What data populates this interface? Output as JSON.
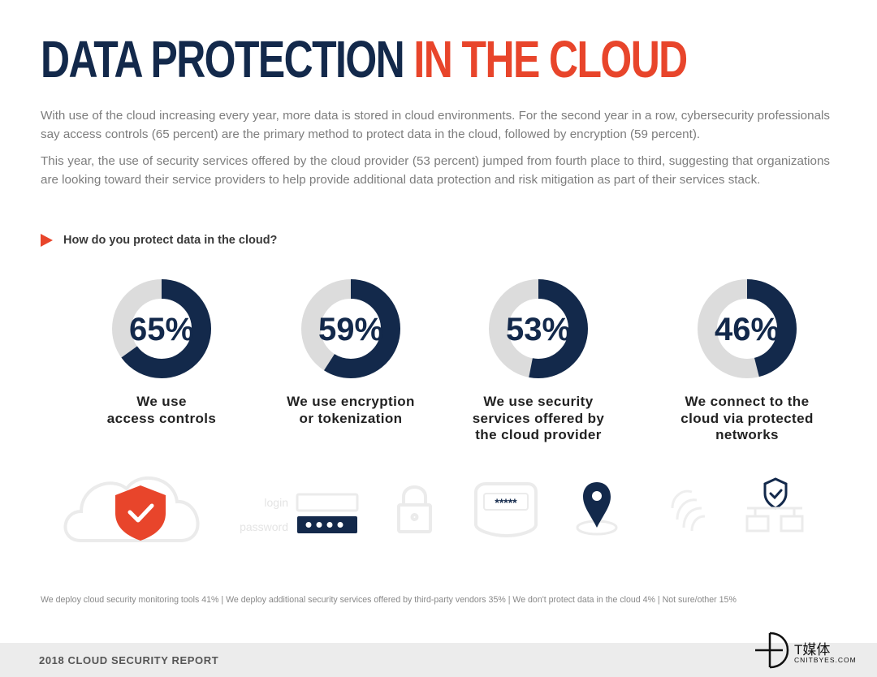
{
  "title": {
    "part1": "DATA PROTECTION",
    "part2": "IN THE CLOUD"
  },
  "paragraphs": [
    "With use of the cloud increasing every year, more data is stored in cloud environments. For the second year in a row, cybersecurity professionals say access controls (65 percent) are the primary method to protect data in the cloud, followed by encryption (59 percent).",
    "This year, the use of security services offered by the cloud provider (53 percent) jumped from fourth place to third, suggesting that organizations are looking toward their service providers to help provide additional data protection and risk mitigation as part of their services stack."
  ],
  "question": "How do you protect data in the cloud?",
  "colors": {
    "navy": "#13294b",
    "accent": "#e8452b",
    "track": "#dcdcdc"
  },
  "chart_data": {
    "type": "donut",
    "title": "How do you protect data in the cloud?",
    "series": [
      {
        "value": 65,
        "display": "65%",
        "label_lines": [
          "We use",
          "access controls"
        ]
      },
      {
        "value": 59,
        "display": "59%",
        "label_lines": [
          "We use encryption",
          "or tokenization"
        ]
      },
      {
        "value": 53,
        "display": "53%",
        "label_lines": [
          "We use security",
          "services offered by",
          "the cloud provider"
        ]
      },
      {
        "value": 46,
        "display": "46%",
        "label_lines": [
          "We connect to the",
          "cloud via protected",
          "networks"
        ]
      }
    ]
  },
  "icons": {
    "names": [
      "cloud-shield-check-icon",
      "login-form-icon",
      "padlock-icon",
      "masked-password-icon",
      "location-pin-icon",
      "fingerprint-icon",
      "network-shield-icon"
    ],
    "login_label": "login",
    "password_label": "password",
    "masked_text": "*****"
  },
  "footnote": "We deploy cloud security monitoring tools 41%  |  We deploy additional security services offered by third-party vendors 35%  |  We don't protect data in the cloud 4%  |  Not sure/other 15%",
  "footer": {
    "report": "2018 CLOUD SECURITY REPORT"
  },
  "watermark": {
    "cn": "T媒体",
    "en": "CNITBYES.COM"
  }
}
